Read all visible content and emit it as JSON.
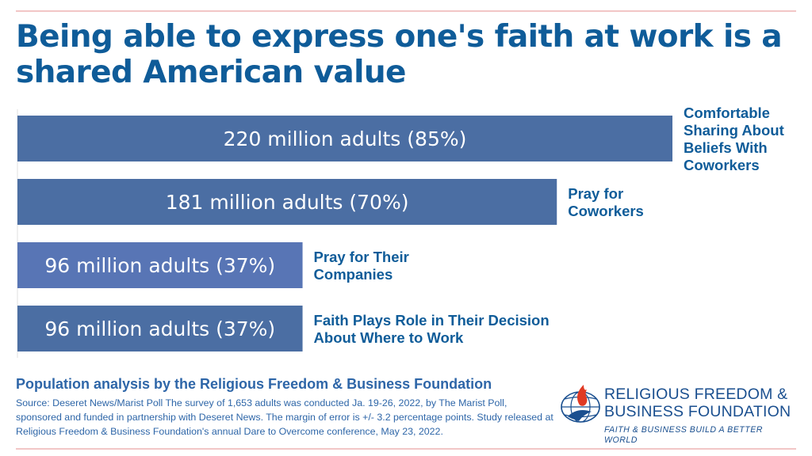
{
  "title": "Being able to express one's faith at work is a shared American value",
  "chart_data": {
    "type": "bar",
    "orientation": "horizontal",
    "xlim": [
      0,
      100
    ],
    "bars": [
      {
        "value": 85,
        "value_label": "220 million adults (85%)",
        "category": [
          "Comfortable",
          "Sharing About",
          "Beliefs With",
          "Coworkers"
        ],
        "color": "#4b6ea3"
      },
      {
        "value": 70,
        "value_label": "181 million adults (70%)",
        "category": [
          "Pray for",
          "Coworkers"
        ],
        "color": "#4b6ea3"
      },
      {
        "value": 37,
        "value_label": "96 million adults (37%)",
        "category": [
          "Pray for Their",
          "Companies"
        ],
        "color": "#5875b5"
      },
      {
        "value": 37,
        "value_label": "96 million adults (37%)",
        "category": [
          "Faith Plays Role in Their Decision",
          "About Where to Work"
        ],
        "color": "#4b6ea3"
      }
    ]
  },
  "footer": {
    "analysis_title": "Population analysis by the Religious Freedom & Business Foundation",
    "source": "Source: Deseret News/Marist Poll The survey of 1,653 adults was conducted Ja. 19-26, 2022, by The Marist Poll, sponsored and funded in partnership with Deseret News. The margin of error is +/- 3.2 percentage points. Study released at Religious Freedom & Business Foundation's annual Dare to Overcome conference, May 23, 2022."
  },
  "logo": {
    "name_line1": "RELIGIOUS FREEDOM &",
    "name_line2": "BUSINESS FOUNDATION",
    "tagline": "FAITH & BUSINESS BUILD A BETTER WORLD",
    "icon": "globe-flame-icon"
  },
  "colors": {
    "title": "#0f5c99",
    "bar": "#4b6ea3",
    "footer_text": "#2e66a8",
    "rule": "#f2c6c6",
    "logo_flame": "#e03a24"
  }
}
